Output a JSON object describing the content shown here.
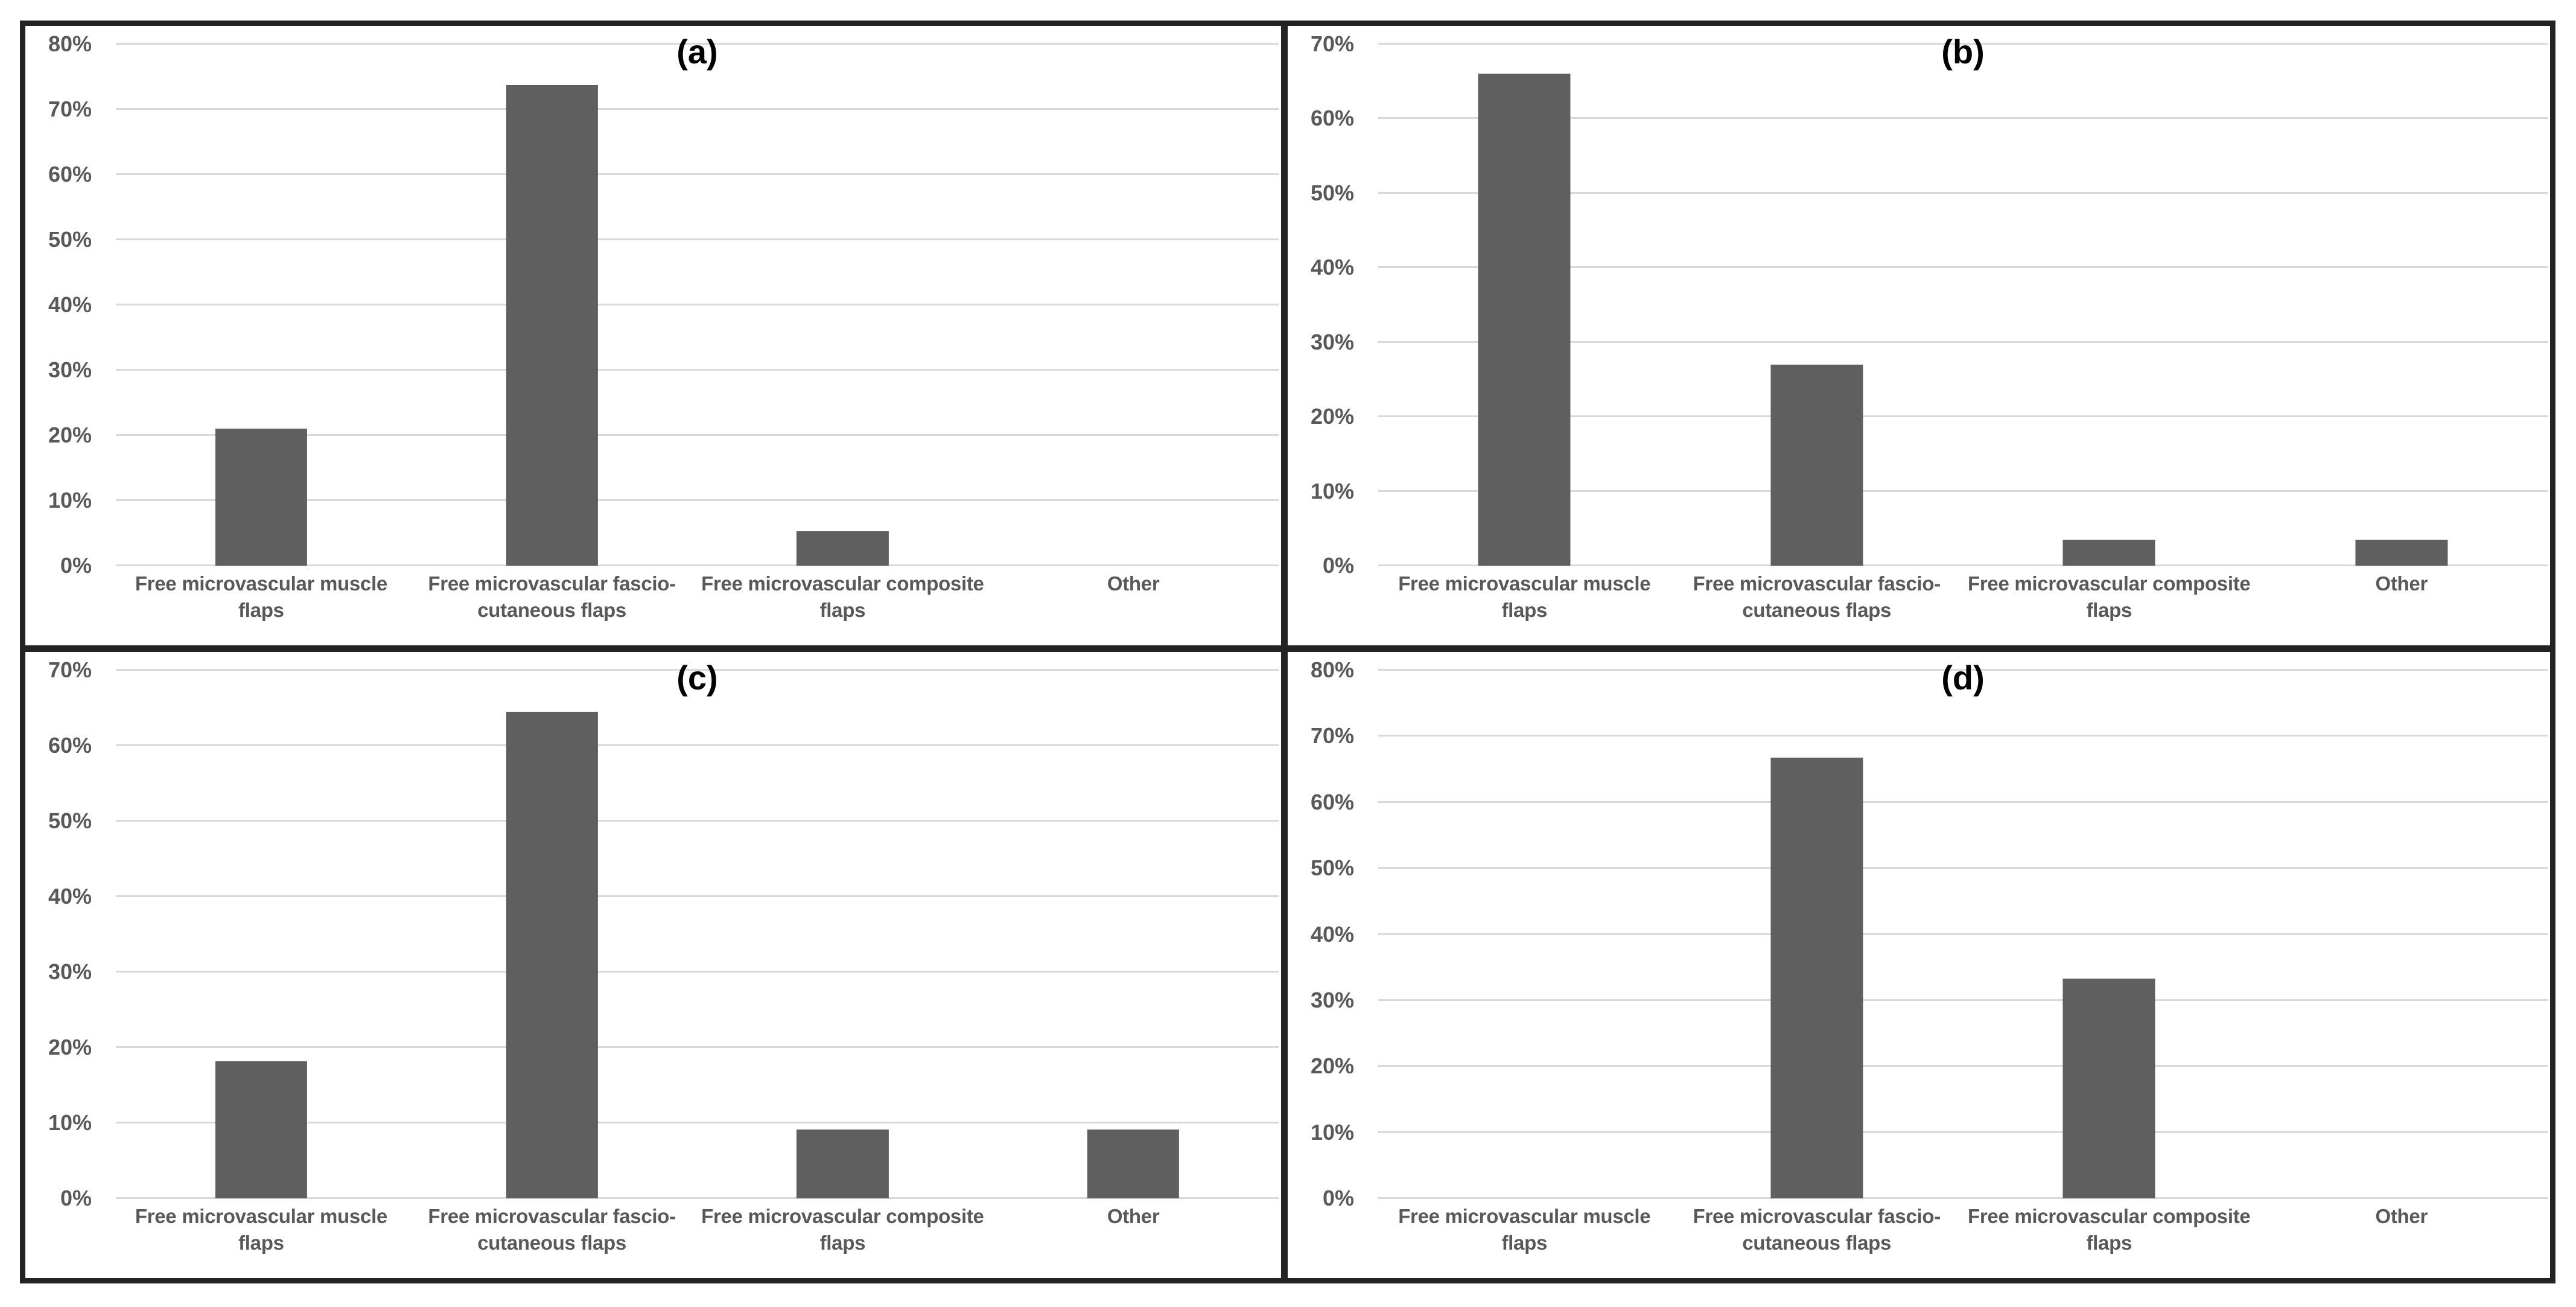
{
  "styles": {
    "bar_color": "#5f5f5f",
    "gridline_color": "#d9d9d9",
    "tick_label_color": "#595959",
    "panel_letter_color": "#000000",
    "border_color": "#232323",
    "background_color": "#ffffff"
  },
  "chart_data": [
    {
      "type": "bar",
      "title": "(a)",
      "categories": [
        "Free microvascular muscle\nflaps",
        "Free microvascular fascio-\ncutaneous flaps",
        "Free microvascular composite\nflaps",
        "Other"
      ],
      "values": [
        21,
        73.7,
        5.3,
        0
      ],
      "ylim": [
        0,
        80
      ],
      "ytick_step": 10,
      "ytick_suffix": "%",
      "grid": true,
      "legend": "none",
      "xlabel": "",
      "ylabel": ""
    },
    {
      "type": "bar",
      "title": "(b)",
      "categories": [
        "Free microvascular muscle\nflaps",
        "Free microvascular fascio-\ncutaneous flaps",
        "Free microvascular composite\nflaps",
        "Other"
      ],
      "values": [
        66,
        27,
        3.5,
        3.5
      ],
      "ylim": [
        0,
        70
      ],
      "ytick_step": 10,
      "ytick_suffix": "%",
      "grid": true,
      "legend": "none",
      "xlabel": "",
      "ylabel": ""
    },
    {
      "type": "bar",
      "title": "(c)",
      "categories": [
        "Free microvascular muscle\nflaps",
        "Free microvascular fascio-\ncutaneous flaps",
        "Free microvascular composite\nflaps",
        "Other"
      ],
      "values": [
        18.2,
        64.5,
        9.1,
        9.1
      ],
      "ylim": [
        0,
        70
      ],
      "ytick_step": 10,
      "ytick_suffix": "%",
      "grid": true,
      "legend": "none",
      "xlabel": "",
      "ylabel": ""
    },
    {
      "type": "bar",
      "title": "(d)",
      "categories": [
        "Free microvascular muscle\nflaps",
        "Free microvascular fascio-\ncutaneous flaps",
        "Free microvascular composite\nflaps",
        "Other"
      ],
      "values": [
        0,
        66.7,
        33.3,
        0
      ],
      "ylim": [
        0,
        80
      ],
      "ytick_step": 10,
      "ytick_suffix": "%",
      "grid": true,
      "legend": "none",
      "xlabel": "",
      "ylabel": ""
    }
  ]
}
